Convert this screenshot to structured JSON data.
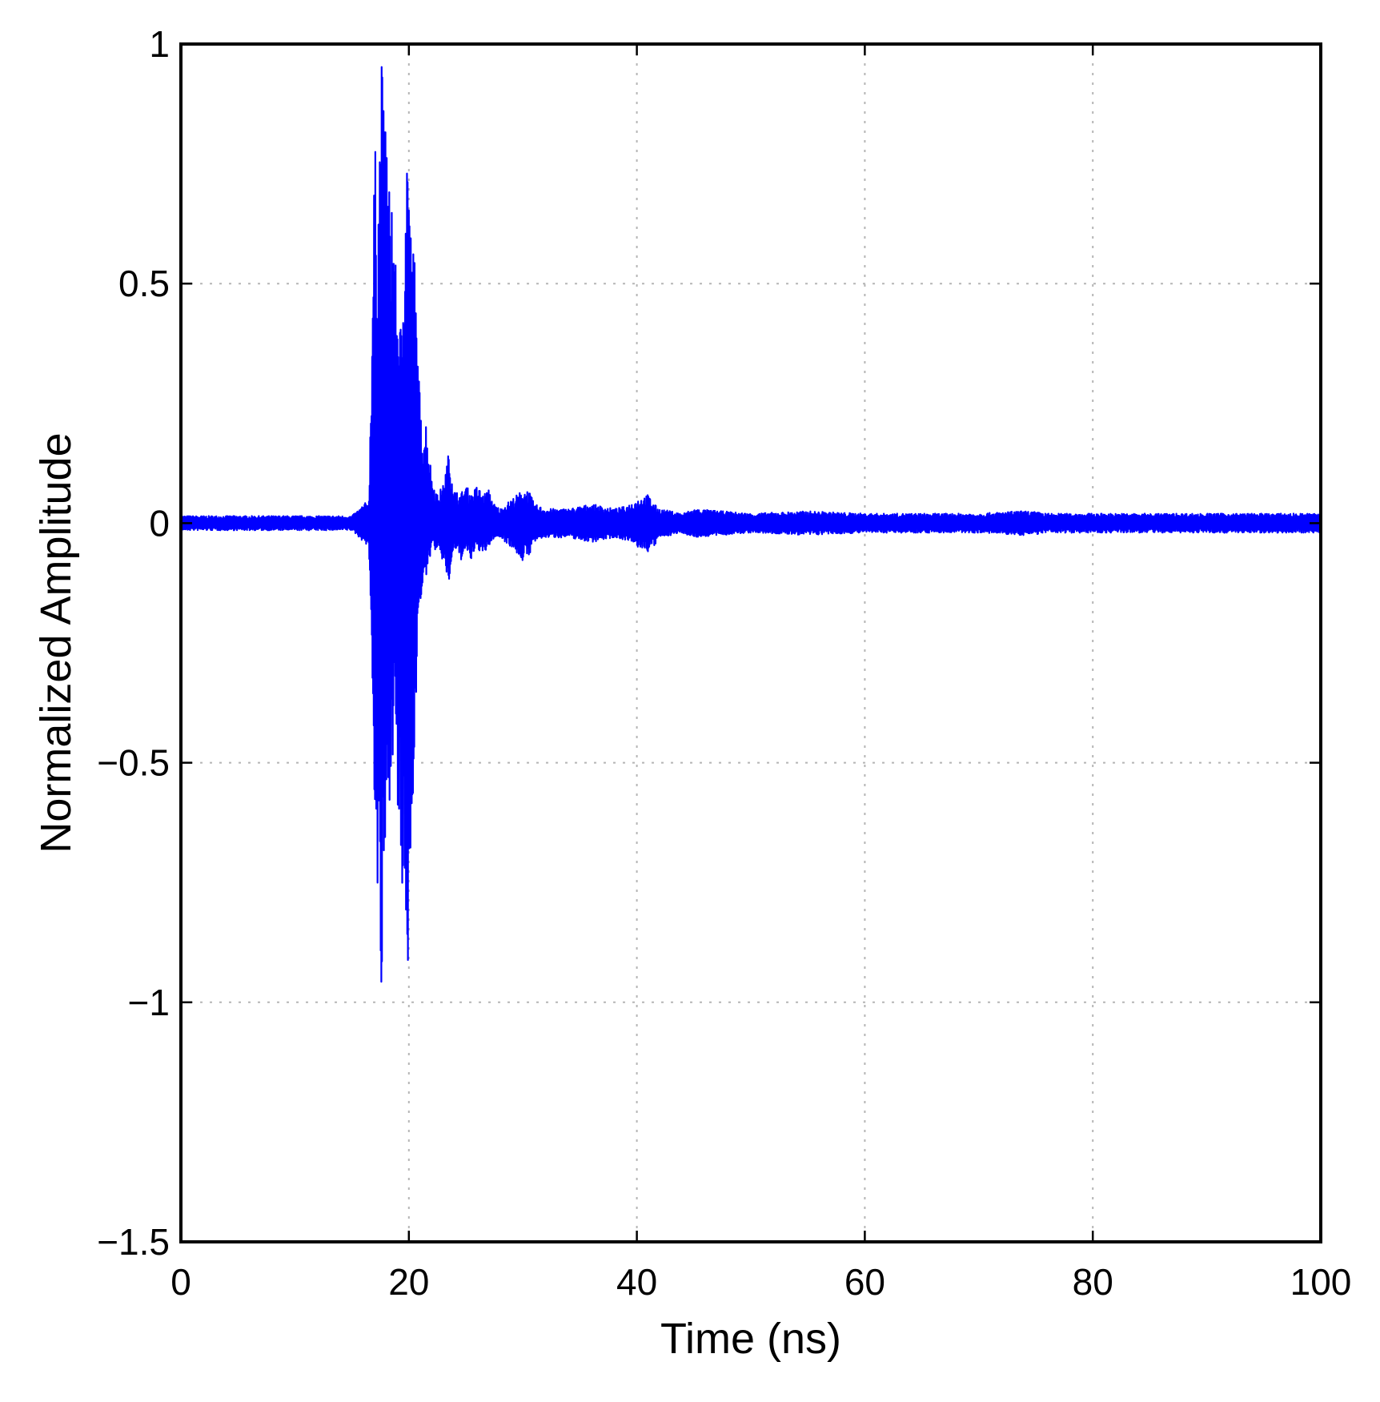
{
  "chart_data": {
    "type": "line",
    "title": "",
    "xlabel": "Time (ns)",
    "ylabel": "Normalized Amplitude",
    "xlim": [
      0,
      100
    ],
    "ylim": [
      -1.5,
      1
    ],
    "grid": true,
    "x_ticks": [
      0,
      20,
      40,
      60,
      80,
      100
    ],
    "x_tick_labels": [
      "0",
      "20",
      "40",
      "60",
      "80",
      "100"
    ],
    "y_ticks": [
      1,
      0.5,
      0,
      -0.5,
      -1,
      -1.5
    ],
    "y_tick_labels": [
      "1",
      "0.5",
      "0",
      "−0.5",
      "−1",
      "−1.5"
    ],
    "colors": {
      "series": "#0000ff",
      "grid": "#b5b5b5",
      "axes": "#000000"
    },
    "series": [
      {
        "description_free": true,
        "x": [
          0,
          5,
          10,
          15,
          16.5,
          17.0,
          17.3,
          17.6,
          17.8,
          18.0,
          18.2,
          18.5,
          18.8,
          19.1,
          19.4,
          19.7,
          20.0,
          20.2,
          20.5,
          20.8,
          21.1,
          21.5,
          22.0,
          22.5,
          23.0,
          23.5,
          24.0,
          24.5,
          25.0,
          25.5,
          26.0,
          26.5,
          27.0,
          27.5,
          28.0,
          29.0,
          30.0,
          30.5,
          31.0,
          32.0,
          33.0,
          34.0,
          35.0,
          36.0,
          37.0,
          38.0,
          39.0,
          40.0,
          41.0,
          41.5,
          42.0,
          43.0,
          44.0,
          45.0,
          50.0,
          55.0,
          60.0,
          65.0,
          70.0,
          73.5,
          74.5,
          76.0,
          80.0,
          85.0,
          90.0,
          95.0,
          100.0
        ],
        "upper": [
          0.015,
          0.015,
          0.015,
          0.015,
          0.05,
          0.8,
          0.7,
          1.0,
          0.85,
          0.92,
          0.7,
          0.75,
          0.55,
          0.45,
          0.4,
          0.85,
          0.82,
          0.6,
          0.57,
          0.35,
          0.2,
          0.22,
          0.1,
          0.06,
          0.08,
          0.15,
          0.07,
          0.06,
          0.08,
          0.06,
          0.08,
          0.06,
          0.07,
          0.04,
          0.03,
          0.05,
          0.07,
          0.07,
          0.04,
          0.03,
          0.03,
          0.03,
          0.035,
          0.04,
          0.035,
          0.03,
          0.035,
          0.05,
          0.06,
          0.04,
          0.03,
          0.025,
          0.02,
          0.03,
          0.02,
          0.025,
          0.02,
          0.02,
          0.02,
          0.025,
          0.025,
          0.02,
          0.02,
          0.02,
          0.02,
          0.02,
          0.02
        ],
        "lower": [
          -0.015,
          -0.015,
          -0.015,
          -0.015,
          -0.05,
          -0.6,
          -0.85,
          -1.05,
          -0.9,
          -0.65,
          -0.62,
          -0.5,
          -0.45,
          -0.7,
          -0.8,
          -0.95,
          -0.98,
          -0.6,
          -0.55,
          -0.22,
          -0.15,
          -0.12,
          -0.05,
          -0.06,
          -0.08,
          -0.13,
          -0.05,
          -0.08,
          -0.06,
          -0.08,
          -0.05,
          -0.07,
          -0.05,
          -0.03,
          -0.03,
          -0.05,
          -0.08,
          -0.07,
          -0.04,
          -0.03,
          -0.03,
          -0.03,
          -0.035,
          -0.04,
          -0.035,
          -0.03,
          -0.035,
          -0.05,
          -0.06,
          -0.05,
          -0.03,
          -0.025,
          -0.02,
          -0.03,
          -0.02,
          -0.025,
          -0.02,
          -0.02,
          -0.02,
          -0.025,
          -0.025,
          -0.02,
          -0.02,
          -0.02,
          -0.02,
          -0.02,
          -0.02
        ]
      }
    ]
  }
}
